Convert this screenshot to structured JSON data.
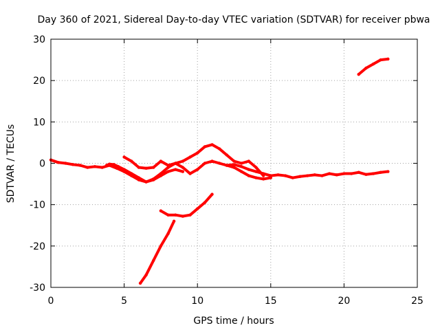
{
  "chart_data": {
    "type": "line",
    "title": "Day 360 of 2021, Sidereal Day-to-day VTEC variation (SDTVAR) for receiver pbwa",
    "xlabel": "GPS time / hours",
    "ylabel": "SDTVAR / TECUs",
    "xlim": [
      0,
      25
    ],
    "ylim": [
      -30,
      30
    ],
    "xticks": [
      0,
      5,
      10,
      15,
      20,
      25
    ],
    "yticks": [
      -30,
      -20,
      -10,
      0,
      10,
      20,
      30
    ],
    "grid": true,
    "series_color": "#ff0000",
    "series": [
      {
        "name": "segment-1",
        "x": [
          0,
          0.5,
          1,
          1.5,
          2,
          2.5,
          3,
          3.5,
          4,
          4.5,
          5,
          5.5,
          6,
          6.5,
          7,
          7.5,
          8,
          8.5,
          9,
          9.5,
          10,
          10.5,
          11,
          11.5,
          12,
          12.5,
          13,
          13.5,
          14,
          14.5,
          15,
          15.5,
          16,
          16.5,
          17,
          17.5,
          18,
          18.5,
          19,
          19.5,
          20,
          20.5,
          21,
          21.5,
          22,
          22.5,
          23
        ],
        "y": [
          0.8,
          0.2,
          0,
          -0.3,
          -0.5,
          -1,
          -0.8,
          -1,
          -0.5,
          -1.2,
          -2,
          -3,
          -4,
          -4.5,
          -3.8,
          -2.5,
          -1,
          0,
          -1,
          -2.5,
          -1.5,
          0,
          0.5,
          0,
          -0.5,
          -0.3,
          -0.8,
          -1.5,
          -2,
          -2.5,
          -3,
          -2.8,
          -3,
          -3.5,
          -3.2,
          -3,
          -2.8,
          -3,
          -2.5,
          -2.8,
          -2.5,
          -2.5,
          -2.2,
          -2.7,
          -2.5,
          -2.2,
          -2
        ]
      },
      {
        "name": "segment-2",
        "x": [
          3.8,
          4,
          4.3,
          4.6,
          5,
          5.5,
          6,
          6.5,
          7,
          7.5,
          8,
          8.5,
          9
        ],
        "y": [
          -0.5,
          -0.2,
          -0.3,
          -0.8,
          -1.5,
          -2.5,
          -3.5,
          -4.5,
          -4,
          -3,
          -2,
          -1.5,
          -2
        ]
      },
      {
        "name": "segment-3",
        "x": [
          5,
          5.5,
          6,
          6.5,
          7,
          7.5,
          8,
          8.5,
          9,
          9.5,
          10,
          10.5,
          11,
          11.5,
          12,
          12.5,
          13,
          13.5,
          14,
          14.5
        ],
        "y": [
          1.5,
          0.5,
          -1,
          -1.2,
          -1,
          0.5,
          -0.5,
          0,
          0.5,
          1.5,
          2.5,
          4,
          4.5,
          3.5,
          2,
          0.5,
          0,
          0.5,
          -1,
          -3
        ]
      },
      {
        "name": "segment-4",
        "x": [
          12,
          12.5,
          13,
          13.5,
          14,
          14.5,
          15
        ],
        "y": [
          -0.5,
          -1,
          -2,
          -3,
          -3.5,
          -3.8,
          -3.5
        ]
      },
      {
        "name": "segment-5",
        "x": [
          7.5,
          8,
          8.5,
          9,
          9.5,
          10,
          10.5,
          11
        ],
        "y": [
          -11.5,
          -12.5,
          -12.5,
          -12.8,
          -12.5,
          -11,
          -9.5,
          -7.5
        ]
      },
      {
        "name": "segment-6",
        "x": [
          6.1,
          6.5,
          7,
          7.5,
          8,
          8.4
        ],
        "y": [
          -29,
          -27,
          -23.5,
          -20,
          -17,
          -14
        ]
      },
      {
        "name": "segment-7",
        "x": [
          21,
          21.5,
          22,
          22.5,
          23
        ],
        "y": [
          21.5,
          23,
          24,
          25,
          25.2
        ]
      }
    ]
  }
}
